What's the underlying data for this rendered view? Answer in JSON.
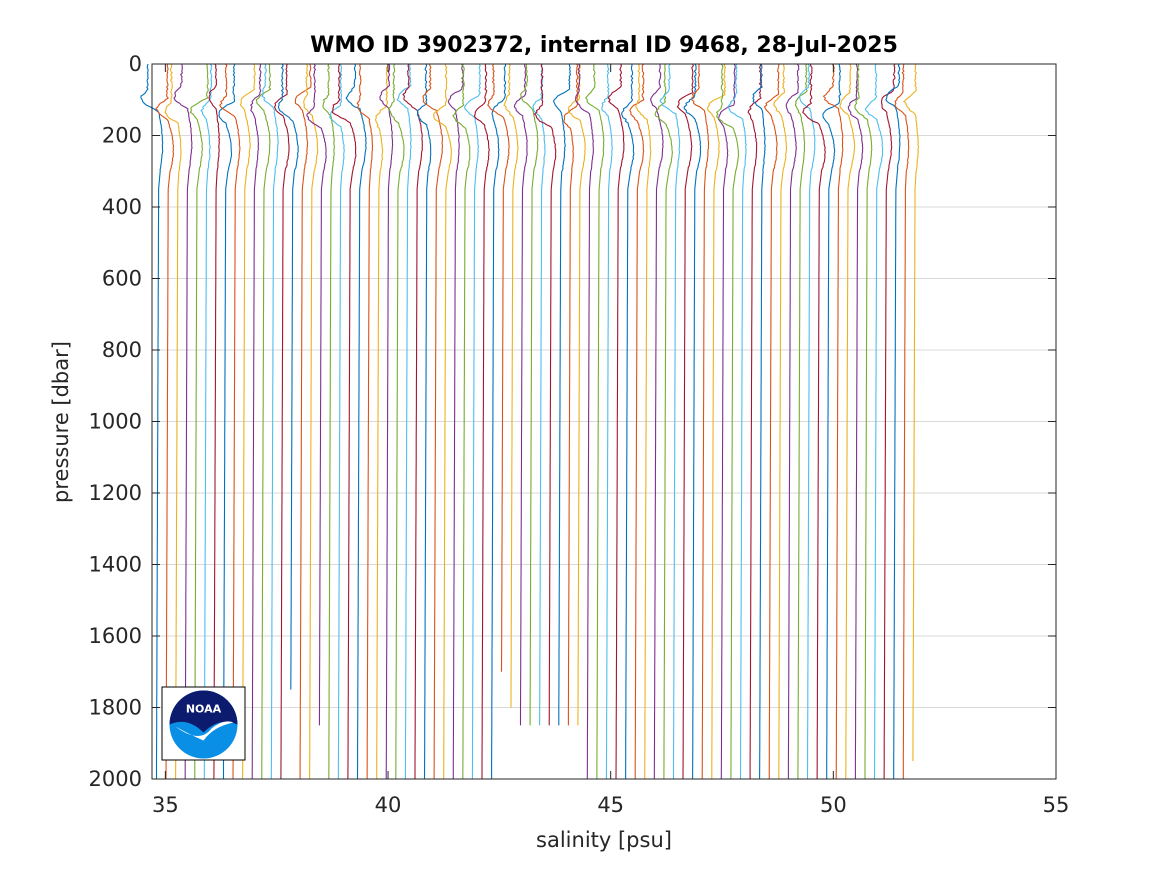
{
  "chart_data": {
    "type": "line",
    "title": "WMO ID 3902372, internal ID 9468, 28-Jul-2025",
    "xlabel": "salinity [psu]",
    "ylabel": "pressure [dbar]",
    "xlim": [
      34.7,
      55
    ],
    "ylim": [
      0,
      2000
    ],
    "y_reversed": true,
    "grid": {
      "x": false,
      "y": true
    },
    "xticks": [
      "35",
      "40",
      "45",
      "50",
      "55"
    ],
    "yticks": [
      "0",
      "200",
      "400",
      "600",
      "800",
      "1000",
      "1200",
      "1400",
      "1600",
      "1800",
      "2000"
    ],
    "profile_count": 80,
    "note_series": "Offset salinity profiles, each cycle shifted by ~0.215 psu; all profiles near-constant below ~300 dbar with surface-layer variability",
    "series_colors": [
      "#0072BD",
      "#D95319",
      "#EDB120",
      "#7E2F8E",
      "#77AC30",
      "#4DBEEE",
      "#A2142F"
    ],
    "profile_start_x": 34.85,
    "profile_step_x": 0.215,
    "short_profiles": [
      {
        "index": 14,
        "max_pressure": 1750
      },
      {
        "index": 17,
        "max_pressure": 1850
      },
      {
        "index": 36,
        "max_pressure": 1700
      },
      {
        "index": 37,
        "max_pressure": 1800
      },
      {
        "index": 38,
        "max_pressure": 1850
      },
      {
        "index": 39,
        "max_pressure": 1850
      },
      {
        "index": 40,
        "max_pressure": 1850
      },
      {
        "index": 41,
        "max_pressure": 1850
      },
      {
        "index": 42,
        "max_pressure": 1850
      },
      {
        "index": 43,
        "max_pressure": 1850
      },
      {
        "index": 44,
        "max_pressure": 1850
      },
      {
        "index": 79,
        "max_pressure": 1950
      }
    ],
    "logo": "noaa-logo"
  }
}
